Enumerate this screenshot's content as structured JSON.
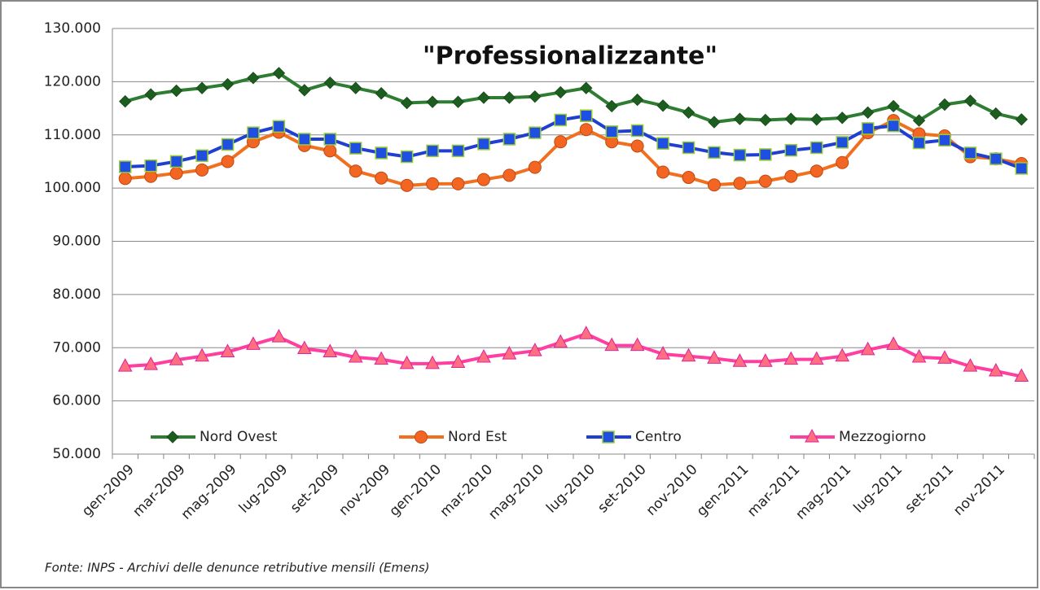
{
  "chart_data": {
    "type": "line",
    "title": "\"Professionalizzante\"",
    "source": "Fonte: INPS - Archivi delle denunce retributive mensili (Emens)",
    "categories": [
      "gen-2009",
      null,
      "mar-2009",
      null,
      "mag-2009",
      null,
      "lug-2009",
      null,
      "set-2009",
      null,
      "nov-2009",
      null,
      "gen-2010",
      null,
      "mar-2010",
      null,
      "mag-2010",
      null,
      "lug-2010",
      null,
      "set-2010",
      null,
      "nov-2010",
      null,
      "gen-2011",
      null,
      "mar-2011",
      null,
      "mag-2011",
      null,
      "lug-2011",
      null,
      "set-2011",
      null,
      "nov-2011",
      null
    ],
    "ylim": [
      50000,
      130000
    ],
    "yticks": [
      {
        "value": 50000,
        "label": "50.000"
      },
      {
        "value": 60000,
        "label": "60.000"
      },
      {
        "value": 70000,
        "label": "70.000"
      },
      {
        "value": 80000,
        "label": "80.000"
      },
      {
        "value": 90000,
        "label": "90.000"
      },
      {
        "value": 100000,
        "label": "100.000"
      },
      {
        "value": 110000,
        "label": "110.000"
      },
      {
        "value": 120000,
        "label": "120.000"
      },
      {
        "value": 130000,
        "label": "130.000"
      }
    ],
    "grid": true,
    "legend": "bottom",
    "series": [
      {
        "name": "Nord Ovest",
        "color": "#2e7d32",
        "marker": "diamond",
        "marker_color": "#1b5e20",
        "values": [
          116300,
          117600,
          118300,
          118800,
          119500,
          120700,
          121600,
          118400,
          119800,
          118800,
          117800,
          116000,
          116200,
          116200,
          117000,
          117000,
          117200,
          118000,
          118800,
          115400,
          116600,
          115500,
          114200,
          112400,
          113000,
          112800,
          113000,
          112900,
          113200,
          114200,
          115400,
          112700,
          115700,
          116400,
          114000,
          112900
        ]
      },
      {
        "name": "Nord Est",
        "color": "#f07020",
        "marker": "circle",
        "marker_color": "#f26522",
        "values": [
          101800,
          102200,
          102800,
          103400,
          105000,
          108700,
          110500,
          108000,
          107000,
          103200,
          101900,
          100500,
          100800,
          100800,
          101600,
          102400,
          103900,
          108700,
          111000,
          108700,
          107900,
          103000,
          102000,
          100600,
          100900,
          101300,
          102200,
          103200,
          104800,
          110400,
          112700,
          110200,
          109800,
          105900,
          105500,
          104600
        ]
      },
      {
        "name": "Centro",
        "color": "#1f3fd0",
        "marker": "square",
        "marker_color": "#1f4fe0",
        "values": [
          104000,
          104200,
          105000,
          106100,
          108200,
          110400,
          111600,
          109200,
          109200,
          107500,
          106600,
          105900,
          107000,
          107000,
          108300,
          109200,
          110400,
          112800,
          113600,
          110600,
          110800,
          108400,
          107600,
          106700,
          106200,
          106300,
          107100,
          107600,
          108600,
          111200,
          111700,
          108500,
          109000,
          106600,
          105500,
          103700
        ]
      },
      {
        "name": "Mezzogiorno",
        "color": "#ff3fa0",
        "marker": "triangle",
        "marker_color": "#ff6f80",
        "values": [
          66500,
          66800,
          67700,
          68400,
          69200,
          70600,
          72000,
          69800,
          69200,
          68200,
          67800,
          67000,
          67000,
          67200,
          68200,
          68800,
          69400,
          71000,
          72600,
          70400,
          70400,
          68800,
          68400,
          68000,
          67400,
          67400,
          67800,
          67800,
          68400,
          69600,
          70600,
          68200,
          68000,
          66500,
          65600,
          64600
        ]
      }
    ]
  }
}
